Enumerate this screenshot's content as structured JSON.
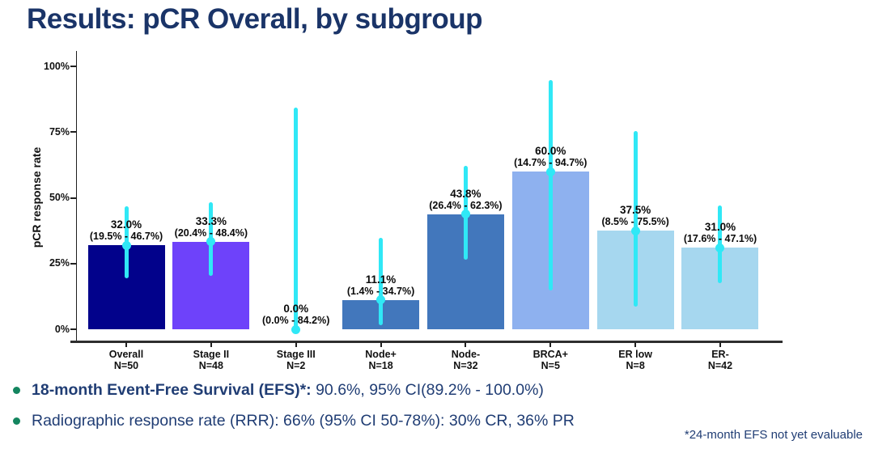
{
  "slide": {
    "title": "Results: pCR Overall, by subgroup",
    "bullets": [
      {
        "bold": "18-month Event-Free Survival (EFS)*:",
        "text": " 90.6%, 95% CI(89.2% - 100.0%)"
      },
      {
        "bold": "",
        "text": "Radiographic response rate (RRR): 66% (95% CI 50-78%): 30% CR, 36% PR"
      }
    ],
    "footnote": "*24-month EFS not yet evaluable"
  },
  "chart_data": {
    "type": "bar",
    "title": "",
    "xlabel": "",
    "ylabel": "pCR response rate",
    "ylim": [
      0,
      100
    ],
    "grid": false,
    "legend": "none",
    "yticks": [
      0,
      25,
      50,
      75,
      100
    ],
    "ytick_labels": [
      "0%",
      "25%",
      "50%",
      "75%",
      "100%"
    ],
    "categories": [
      "Overall",
      "Stage II",
      "Stage III",
      "Node+",
      "Node-",
      "BRCA+",
      "ER low",
      "ER-"
    ],
    "n_labels": [
      "N=50",
      "N=48",
      "N=2",
      "N=18",
      "N=32",
      "N=5",
      "N=8",
      "N=42"
    ],
    "values": [
      32.0,
      33.3,
      0.0,
      11.1,
      43.8,
      60.0,
      37.5,
      31.0
    ],
    "ci_low": [
      19.5,
      20.4,
      0.0,
      1.4,
      26.4,
      14.7,
      8.5,
      17.6
    ],
    "ci_high": [
      46.7,
      48.4,
      84.2,
      34.7,
      62.3,
      94.7,
      75.5,
      47.1
    ],
    "value_labels": [
      "32.0%",
      "33.3%",
      "0.0%",
      "11.1%",
      "43.8%",
      "60.0%",
      "37.5%",
      "31.0%"
    ],
    "ci_labels": [
      "(19.5% - 46.7%)",
      "(20.4% - 48.4%)",
      "(0.0% - 84.2%)",
      "(1.4% - 34.7%)",
      "(26.4% - 62.3%)",
      "(14.7% - 94.7%)",
      "(8.5% - 75.5%)",
      "(17.6% - 47.1%)"
    ],
    "bar_colors": [
      "#02028B",
      "#6E42FA",
      null,
      "#4277BC",
      "#4277BC",
      "#8EB1EF",
      "#A6D7EF",
      "#A6D7EF"
    ],
    "errorbar_color": "#30E8F6"
  },
  "colors": {
    "title_text": "#1A3468",
    "bullet_text": "#203D74",
    "bullet_dot": "#14855F",
    "footnote_text": "#203D74",
    "axis": "#1f1f1f"
  }
}
